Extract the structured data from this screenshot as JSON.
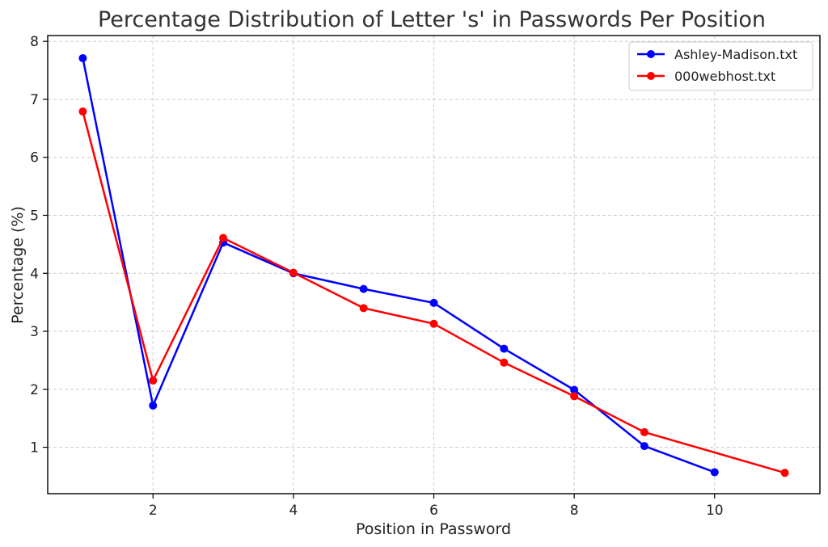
{
  "chart_data": {
    "type": "line",
    "title": "Percentage Distribution of Letter 's' in Passwords Per Position",
    "xlabel": "Position in Password",
    "ylabel": "Percentage (%)",
    "xlim": [
      0.5,
      11.5
    ],
    "ylim": [
      0.2,
      8.1
    ],
    "x_ticks": [
      2,
      4,
      6,
      8,
      10
    ],
    "y_ticks": [
      1,
      2,
      3,
      4,
      5,
      6,
      7,
      8
    ],
    "grid": true,
    "legend_position": "top-right",
    "series": [
      {
        "name": "Ashley-Madison.txt",
        "color": "#0000ff",
        "x": [
          1,
          2,
          3,
          4,
          5,
          6,
          7,
          8,
          9,
          10
        ],
        "values": [
          7.71,
          1.72,
          4.53,
          4.0,
          3.73,
          3.49,
          2.7,
          1.99,
          1.02,
          0.57
        ]
      },
      {
        "name": "000webhost.txt",
        "color": "#ff0000",
        "x": [
          1,
          2,
          3,
          4,
          5,
          6,
          7,
          8,
          9,
          11
        ],
        "values": [
          6.79,
          2.15,
          4.61,
          4.01,
          3.4,
          3.13,
          2.46,
          1.88,
          1.26,
          0.56
        ]
      }
    ]
  }
}
